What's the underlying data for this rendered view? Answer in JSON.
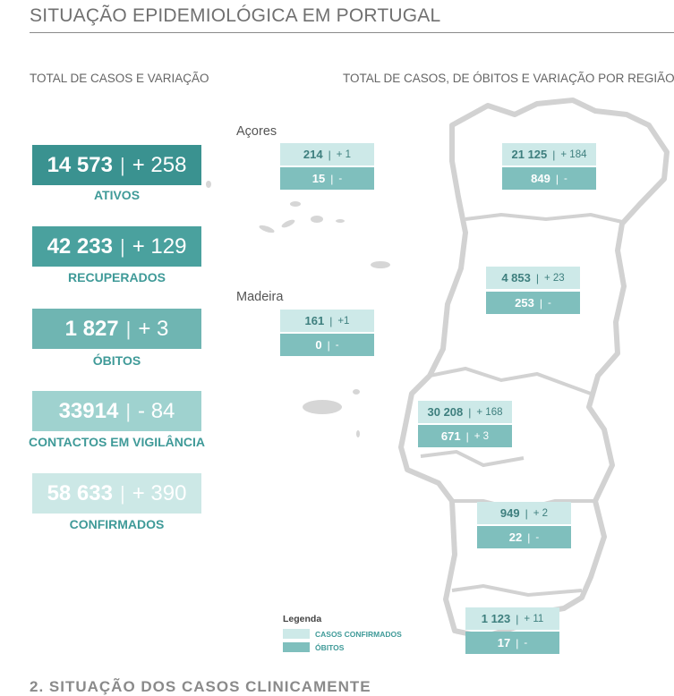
{
  "title": "SITUAÇÃO EPIDEMIOLÓGICA EM PORTUGAL",
  "left_subtitle": "TOTAL DE CASOS E VARIAÇÃO",
  "right_subtitle": "TOTAL DE CASOS, DE ÓBITOS  E VARIAÇÃO POR REGIÃO",
  "colors": {
    "ativos": "#3a9290",
    "recuperados": "#4aa19e",
    "obitos": "#6fb5b2",
    "contactos": "#9fd2cf",
    "confirmados": "#cce8e6",
    "label": "#3f9a98",
    "map": "#d6d6d6"
  },
  "stats": [
    {
      "value": "14 573",
      "sep": "|",
      "delta": "+ 258",
      "label": "ATIVOS"
    },
    {
      "value": "42 233",
      "sep": "|",
      "delta": "+ 129",
      "label": "RECUPERADOS"
    },
    {
      "value": "1 827",
      "sep": "|",
      "delta": "+ 3",
      "label": "ÓBITOS"
    },
    {
      "value": "33914",
      "sep": "|",
      "delta": "- 84",
      "label": "CONTACTOS EM VIGILÂNCIA"
    },
    {
      "value": "58 633",
      "sep": "|",
      "delta": "+ 390",
      "label": "CONFIRMADOS"
    }
  ],
  "islands": {
    "acores_label": "Açores",
    "madeira_label": "Madeira"
  },
  "regions": [
    {
      "cases": "214",
      "sep": "|",
      "cases_delta": "+ 1",
      "deaths": "15",
      "deaths_delta": "-"
    },
    {
      "cases": "161",
      "sep": "|",
      "cases_delta": "+1",
      "deaths": "0",
      "deaths_delta": "-"
    },
    {
      "cases": "21 125",
      "sep": "|",
      "cases_delta": "+ 184",
      "deaths": "849",
      "deaths_delta": "-"
    },
    {
      "cases": "4 853",
      "sep": "|",
      "cases_delta": "+ 23",
      "deaths": "253",
      "deaths_delta": "-"
    },
    {
      "cases": "30 208",
      "sep": "|",
      "cases_delta": "+ 168",
      "deaths": "671",
      "deaths_delta": "+ 3"
    },
    {
      "cases": "949",
      "sep": "|",
      "cases_delta": "+ 2",
      "deaths": "22",
      "deaths_delta": "-"
    },
    {
      "cases": "1 123",
      "sep": "|",
      "cases_delta": "+ 11",
      "deaths": "17",
      "deaths_delta": "-"
    }
  ],
  "legend": {
    "title": "Legenda",
    "confirmed": "CASOS CONFIRMADOS",
    "deaths": "ÓBITOS"
  },
  "next_section_title": "2. SITUAÇÃO DOS CASOS CLINICAMENTE"
}
